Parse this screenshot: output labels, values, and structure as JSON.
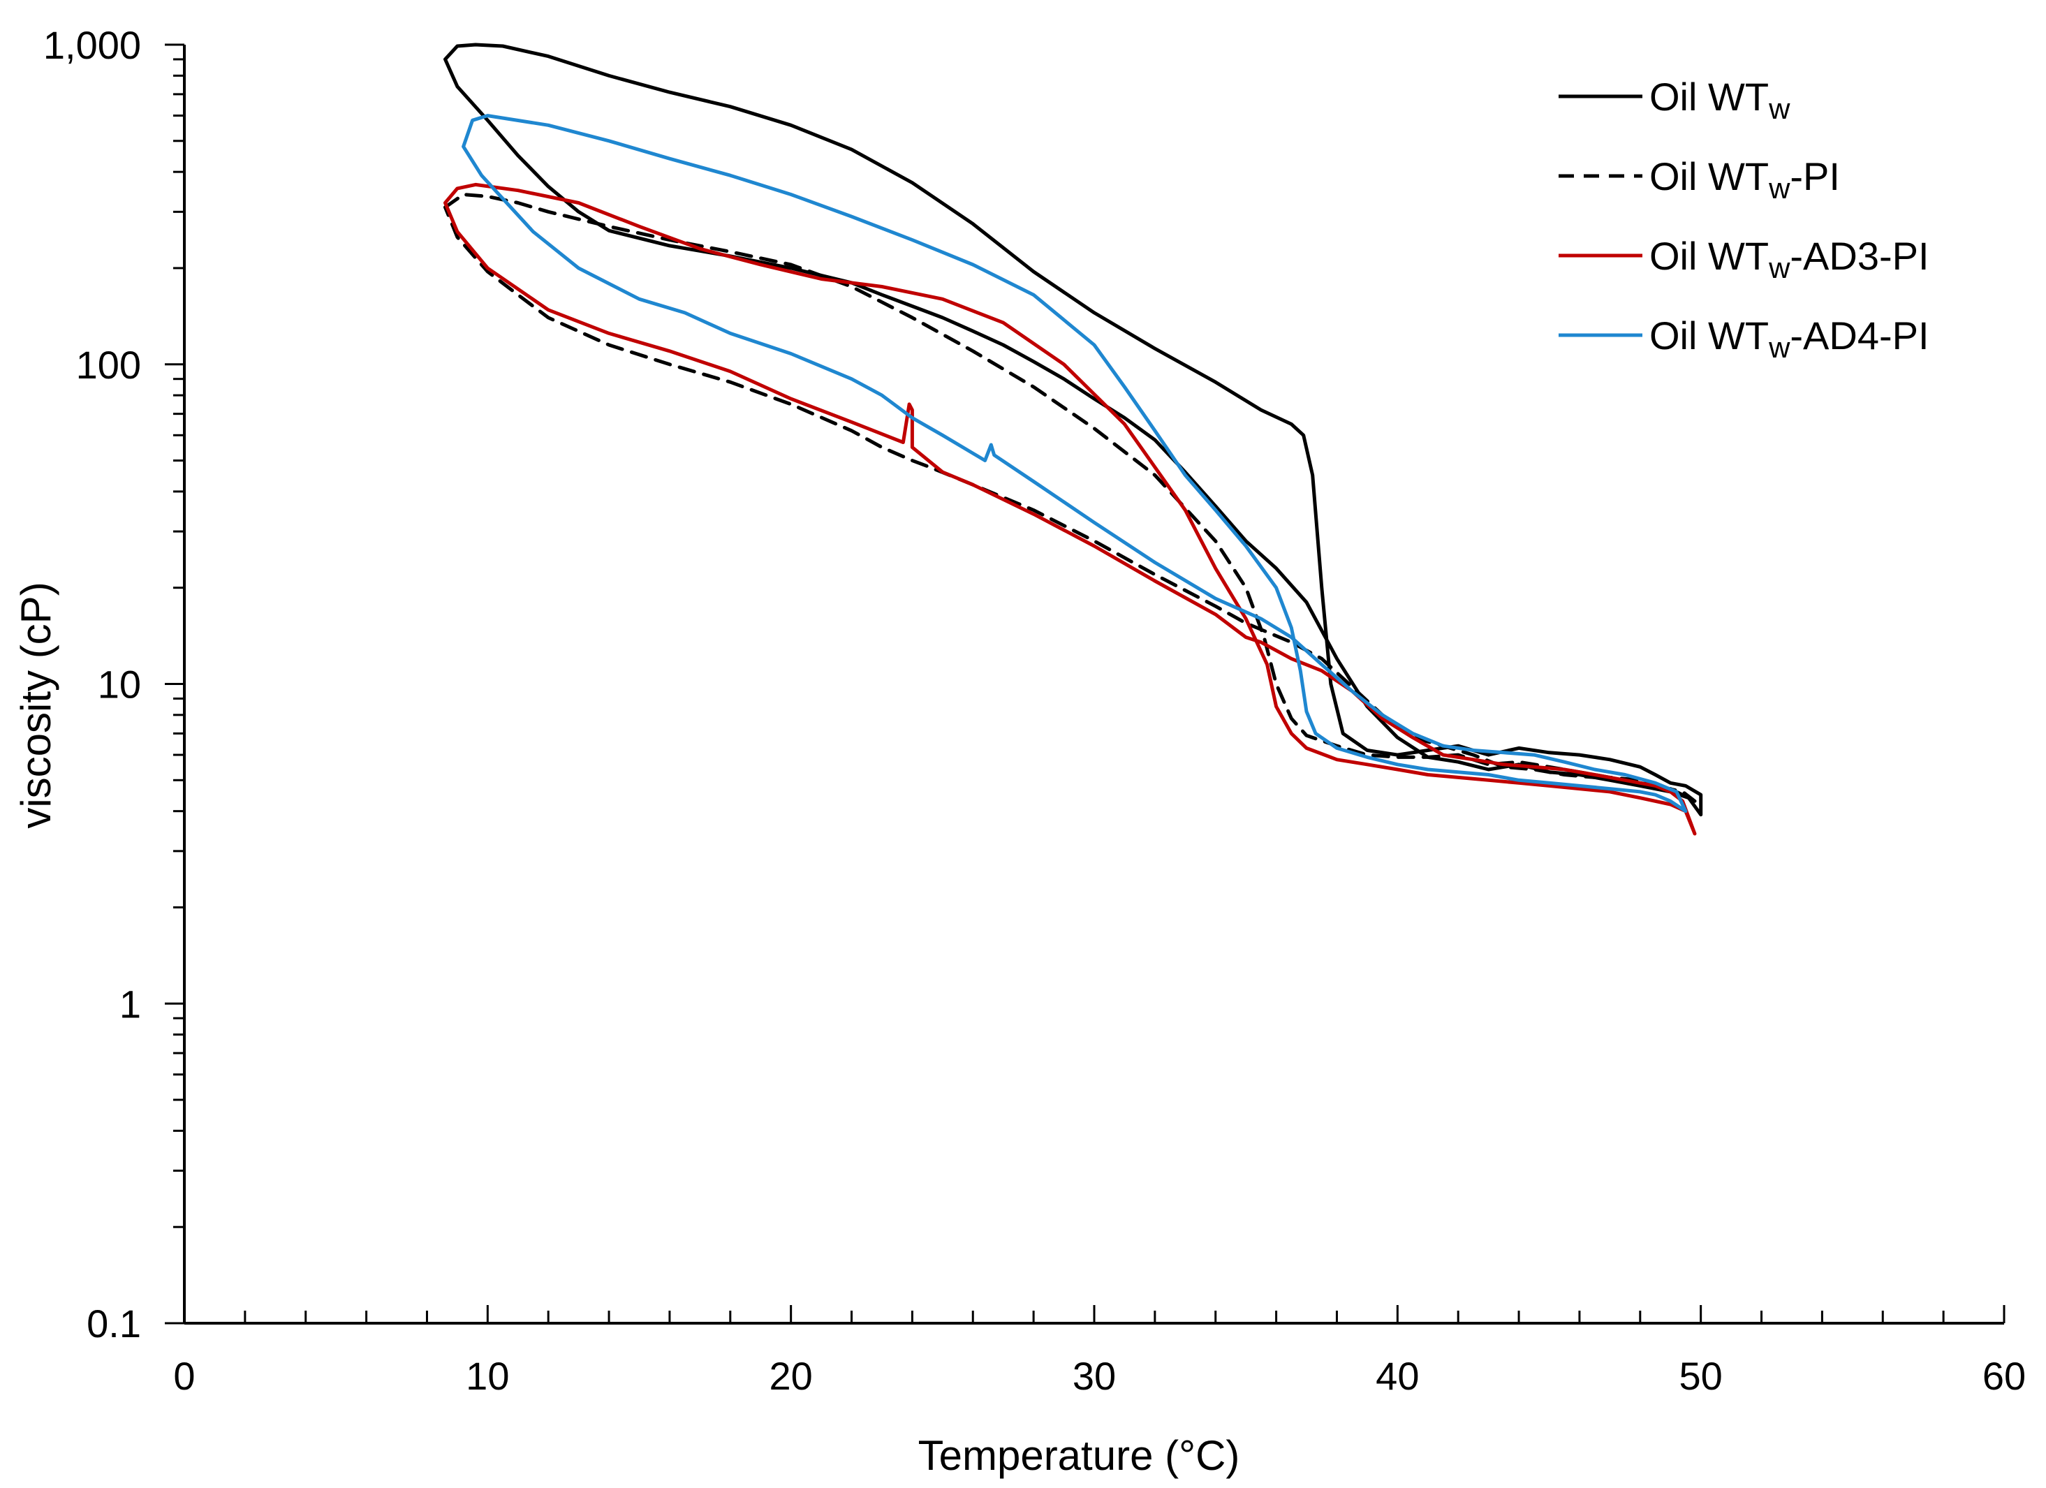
{
  "chart_data": {
    "type": "line",
    "title": "",
    "xlabel": "Temperature (°C)",
    "ylabel": "viscosity (cP)",
    "xlim": [
      0,
      60
    ],
    "ylim": [
      0.1,
      1000
    ],
    "yscale": "log",
    "grid": false,
    "legend_position": "top-right",
    "x_ticks": [
      0,
      10,
      20,
      30,
      40,
      50,
      60
    ],
    "x_tick_labels": [
      "0",
      "10",
      "20",
      "30",
      "40",
      "50",
      "60"
    ],
    "y_ticks": [
      0.1,
      1,
      10,
      100,
      1000
    ],
    "y_tick_labels": [
      "0.1",
      "1",
      "10",
      "100",
      "1,000"
    ],
    "series": [
      {
        "name": "Oil WTw",
        "legend": {
          "base": "Oil WT",
          "sub": "w",
          "suffix": ""
        },
        "color": "#000000",
        "dash": "solid",
        "points": [
          [
            8.6,
            900
          ],
          [
            9.0,
            990
          ],
          [
            9.6,
            1000
          ],
          [
            10.5,
            990
          ],
          [
            12,
            920
          ],
          [
            14,
            800
          ],
          [
            16,
            710
          ],
          [
            18,
            640
          ],
          [
            20,
            560
          ],
          [
            22,
            470
          ],
          [
            24,
            370
          ],
          [
            26,
            275
          ],
          [
            28,
            195
          ],
          [
            30,
            145
          ],
          [
            32,
            112
          ],
          [
            34,
            88
          ],
          [
            35.5,
            72
          ],
          [
            36.5,
            65
          ],
          [
            36.9,
            60
          ],
          [
            37.2,
            45
          ],
          [
            37.5,
            20
          ],
          [
            37.8,
            10
          ],
          [
            38.2,
            7
          ],
          [
            39,
            6.2
          ],
          [
            40,
            6.0
          ],
          [
            41,
            6.2
          ],
          [
            42,
            6.4
          ],
          [
            43,
            6.0
          ],
          [
            44,
            6.3
          ],
          [
            45,
            6.1
          ],
          [
            46,
            6.0
          ],
          [
            47,
            5.8
          ],
          [
            48,
            5.5
          ],
          [
            48.5,
            5.2
          ],
          [
            49,
            4.9
          ],
          [
            49.5,
            4.8
          ],
          [
            50,
            4.5
          ],
          [
            50,
            3.9
          ],
          [
            49.6,
            4.4
          ],
          [
            49,
            4.6
          ],
          [
            48,
            4.8
          ],
          [
            47,
            5.0
          ],
          [
            46,
            5.2
          ],
          [
            45,
            5.3
          ],
          [
            44,
            5.6
          ],
          [
            43,
            5.4
          ],
          [
            42,
            5.7
          ],
          [
            41,
            5.9
          ],
          [
            40,
            6.8
          ],
          [
            39,
            8.5
          ],
          [
            38,
            12
          ],
          [
            37,
            18
          ],
          [
            36,
            23
          ],
          [
            35,
            28
          ],
          [
            34,
            36
          ],
          [
            33,
            46
          ],
          [
            32,
            58
          ],
          [
            31,
            68
          ],
          [
            30,
            78
          ],
          [
            29,
            90
          ],
          [
            28,
            102
          ],
          [
            27,
            115
          ],
          [
            26,
            127
          ],
          [
            25,
            140
          ],
          [
            24,
            152
          ],
          [
            23,
            165
          ],
          [
            22,
            180
          ],
          [
            20,
            200
          ],
          [
            18,
            218
          ],
          [
            16,
            235
          ],
          [
            14,
            262
          ],
          [
            13,
            300
          ],
          [
            12,
            360
          ],
          [
            11,
            450
          ],
          [
            10,
            580
          ],
          [
            9,
            740
          ],
          [
            8.6,
            900
          ]
        ]
      },
      {
        "name": "Oil WTw-PI",
        "legend": {
          "base": "Oil WT",
          "sub": "w",
          "suffix": "-PI"
        },
        "color": "#000000",
        "dash": "dashed",
        "points": [
          [
            8.6,
            310
          ],
          [
            9.2,
            340
          ],
          [
            10,
            335
          ],
          [
            11,
            320
          ],
          [
            12,
            300
          ],
          [
            14,
            270
          ],
          [
            16,
            245
          ],
          [
            18,
            225
          ],
          [
            20,
            205
          ],
          [
            22,
            175
          ],
          [
            24,
            140
          ],
          [
            26,
            110
          ],
          [
            28,
            85
          ],
          [
            30,
            63
          ],
          [
            32,
            45
          ],
          [
            34,
            28
          ],
          [
            35,
            20
          ],
          [
            35.6,
            14
          ],
          [
            36,
            10
          ],
          [
            36.5,
            7.8
          ],
          [
            37,
            6.9
          ],
          [
            38,
            6.4
          ],
          [
            39,
            6.0
          ],
          [
            40,
            5.9
          ],
          [
            41,
            5.9
          ],
          [
            42,
            6.0
          ],
          [
            43,
            5.6
          ],
          [
            44,
            5.7
          ],
          [
            45,
            5.5
          ],
          [
            46,
            5.3
          ],
          [
            47,
            5.1
          ],
          [
            48,
            5.0
          ],
          [
            49,
            4.7
          ],
          [
            49.8,
            4.3
          ],
          [
            49.4,
            4.6
          ],
          [
            48.5,
            4.8
          ],
          [
            47.5,
            5.0
          ],
          [
            46.5,
            5.1
          ],
          [
            45.5,
            5.2
          ],
          [
            44.5,
            5.4
          ],
          [
            43.5,
            5.5
          ],
          [
            42.5,
            6.0
          ],
          [
            41.5,
            6.4
          ],
          [
            40.5,
            6.8
          ],
          [
            39.5,
            8.0
          ],
          [
            38.5,
            9.8
          ],
          [
            37.5,
            12
          ],
          [
            36.5,
            13.5
          ],
          [
            35,
            15.5
          ],
          [
            34,
            17.5
          ],
          [
            32,
            22
          ],
          [
            30,
            28
          ],
          [
            28,
            35
          ],
          [
            26,
            42
          ],
          [
            24.5,
            48
          ],
          [
            24,
            50
          ],
          [
            23,
            55
          ],
          [
            22,
            62
          ],
          [
            20,
            75
          ],
          [
            18,
            88
          ],
          [
            16,
            100
          ],
          [
            14,
            115
          ],
          [
            12,
            140
          ],
          [
            11,
            165
          ],
          [
            10,
            195
          ],
          [
            9,
            250
          ],
          [
            8.6,
            310
          ]
        ]
      },
      {
        "name": "Oil WTw-AD3-PI",
        "legend": {
          "base": "Oil WT",
          "sub": "w",
          "suffix": "-AD3-PI"
        },
        "color": "#C00000",
        "dash": "solid",
        "points": [
          [
            8.6,
            320
          ],
          [
            9.0,
            355
          ],
          [
            9.6,
            365
          ],
          [
            11,
            350
          ],
          [
            13,
            320
          ],
          [
            15,
            270
          ],
          [
            17,
            230
          ],
          [
            19,
            205
          ],
          [
            21,
            185
          ],
          [
            23,
            175
          ],
          [
            25,
            160
          ],
          [
            27,
            135
          ],
          [
            29,
            100
          ],
          [
            31,
            65
          ],
          [
            33,
            35
          ],
          [
            34,
            23
          ],
          [
            35,
            16
          ],
          [
            35.7,
            11.5
          ],
          [
            36,
            8.5
          ],
          [
            36.5,
            7.0
          ],
          [
            37,
            6.3
          ],
          [
            38,
            5.8
          ],
          [
            39,
            5.6
          ],
          [
            40,
            5.4
          ],
          [
            41,
            5.2
          ],
          [
            42,
            5.1
          ],
          [
            43,
            5.0
          ],
          [
            44,
            4.9
          ],
          [
            45,
            4.8
          ],
          [
            46,
            4.7
          ],
          [
            47,
            4.6
          ],
          [
            48,
            4.4
          ],
          [
            49,
            4.2
          ],
          [
            49.5,
            4.0
          ],
          [
            49.8,
            3.4
          ],
          [
            49.4,
            4.3
          ],
          [
            49,
            4.6
          ],
          [
            48.5,
            4.8
          ],
          [
            47.5,
            5.0
          ],
          [
            46.5,
            5.2
          ],
          [
            45.5,
            5.4
          ],
          [
            44.5,
            5.5
          ],
          [
            43.5,
            5.6
          ],
          [
            42.5,
            5.8
          ],
          [
            41.5,
            6.0
          ],
          [
            40.5,
            6.8
          ],
          [
            39.5,
            7.8
          ],
          [
            38.5,
            9.5
          ],
          [
            37.5,
            11
          ],
          [
            36.5,
            12
          ],
          [
            35.5,
            13.5
          ],
          [
            35,
            14
          ],
          [
            34,
            16.5
          ],
          [
            32,
            21
          ],
          [
            30,
            27
          ],
          [
            28,
            34
          ],
          [
            26,
            42
          ],
          [
            25,
            46
          ],
          [
            24,
            55
          ],
          [
            24,
            72
          ],
          [
            23.9,
            75
          ],
          [
            23.7,
            57
          ],
          [
            22,
            66
          ],
          [
            20,
            78
          ],
          [
            18,
            95
          ],
          [
            16,
            110
          ],
          [
            14,
            125
          ],
          [
            12,
            148
          ],
          [
            11,
            172
          ],
          [
            10,
            200
          ],
          [
            9,
            260
          ],
          [
            8.6,
            320
          ]
        ]
      },
      {
        "name": "Oil WTw-AD4-PI",
        "legend": {
          "base": "Oil WT",
          "sub": "w",
          "suffix": "-AD4-PI"
        },
        "color": "#1F87D0",
        "dash": "solid",
        "points": [
          [
            9.2,
            480
          ],
          [
            9.5,
            580
          ],
          [
            10,
            600
          ],
          [
            12,
            560
          ],
          [
            14,
            500
          ],
          [
            16,
            440
          ],
          [
            18,
            390
          ],
          [
            20,
            340
          ],
          [
            22,
            290
          ],
          [
            24,
            245
          ],
          [
            26,
            205
          ],
          [
            28,
            165
          ],
          [
            30,
            115
          ],
          [
            31,
            85
          ],
          [
            32,
            62
          ],
          [
            33,
            45
          ],
          [
            34,
            35
          ],
          [
            35,
            27
          ],
          [
            36,
            20
          ],
          [
            36.5,
            15
          ],
          [
            36.8,
            11
          ],
          [
            37,
            8.2
          ],
          [
            37.3,
            7.0
          ],
          [
            38,
            6.3
          ],
          [
            39,
            5.9
          ],
          [
            40,
            5.6
          ],
          [
            41,
            5.4
          ],
          [
            42,
            5.3
          ],
          [
            43,
            5.2
          ],
          [
            44,
            5.0
          ],
          [
            45,
            4.9
          ],
          [
            46,
            4.8
          ],
          [
            47,
            4.7
          ],
          [
            48,
            4.6
          ],
          [
            48.5,
            4.5
          ],
          [
            49,
            4.3
          ],
          [
            49.5,
            4.0
          ],
          [
            49.2,
            4.6
          ],
          [
            48.5,
            4.9
          ],
          [
            47.5,
            5.2
          ],
          [
            46.5,
            5.4
          ],
          [
            45.5,
            5.7
          ],
          [
            44.5,
            6.0
          ],
          [
            43.5,
            6.1
          ],
          [
            42.5,
            6.2
          ],
          [
            41.5,
            6.4
          ],
          [
            40.5,
            7.0
          ],
          [
            39.5,
            8.0
          ],
          [
            38.5,
            9.5
          ],
          [
            37.5,
            11.5
          ],
          [
            36.5,
            14
          ],
          [
            35.5,
            16
          ],
          [
            34,
            18.5
          ],
          [
            32,
            24
          ],
          [
            30,
            32
          ],
          [
            28,
            43
          ],
          [
            26.7,
            52
          ],
          [
            26.6,
            56
          ],
          [
            26.4,
            50
          ],
          [
            25,
            60
          ],
          [
            24,
            68
          ],
          [
            23,
            80
          ],
          [
            22,
            90
          ],
          [
            20,
            108
          ],
          [
            18,
            125
          ],
          [
            16.5,
            145
          ],
          [
            15,
            160
          ],
          [
            13,
            200
          ],
          [
            11.5,
            260
          ],
          [
            10.5,
            330
          ],
          [
            9.8,
            390
          ],
          [
            9.2,
            480
          ]
        ]
      }
    ]
  }
}
